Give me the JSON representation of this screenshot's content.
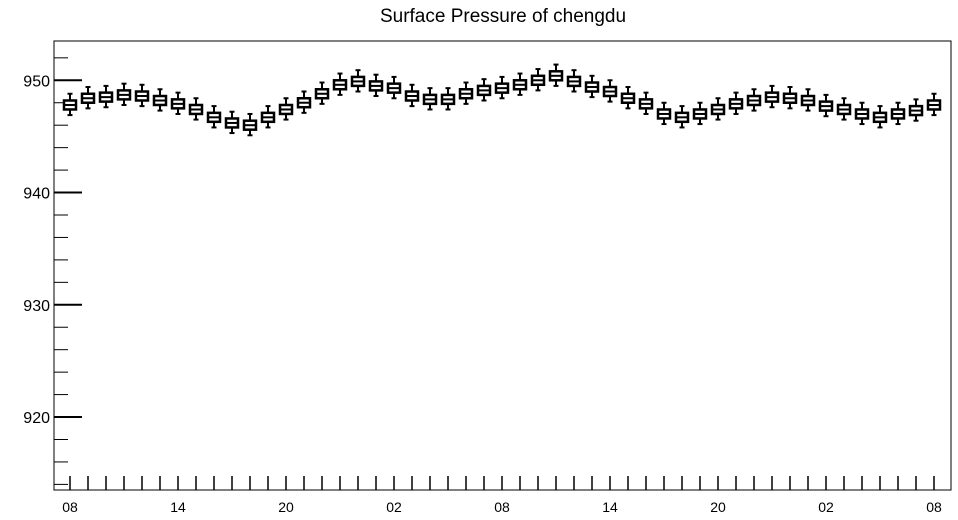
{
  "chart_data": {
    "type": "box",
    "title": "Surface Pressure of chengdu",
    "xlabel": "",
    "ylabel": "",
    "ylim": [
      913.5,
      953.5
    ],
    "y_major_ticks": [
      920,
      930,
      940,
      950
    ],
    "y_minor_step": 2,
    "x_tick_labels": [
      {
        "index": 0,
        "label": "08"
      },
      {
        "index": 6,
        "label": "14"
      },
      {
        "index": 12,
        "label": "20"
      },
      {
        "index": 18,
        "label": "02"
      },
      {
        "index": 24,
        "label": "08"
      },
      {
        "index": 30,
        "label": "14"
      },
      {
        "index": 36,
        "label": "20"
      },
      {
        "index": 42,
        "label": "02"
      },
      {
        "index": 48,
        "label": "08"
      }
    ],
    "grid": false,
    "legend": "none",
    "series": [
      {
        "color": "#000000",
        "median": [
          947.8,
          948.4,
          948.5,
          948.7,
          948.6,
          948.2,
          947.9,
          947.4,
          946.7,
          946.2,
          946.0,
          946.7,
          947.4,
          948.0,
          948.8,
          949.6,
          949.9,
          949.5,
          949.3,
          948.6,
          948.3,
          948.3,
          948.8,
          949.1,
          949.3,
          949.6,
          950.0,
          950.4,
          949.9,
          949.4,
          949.0,
          948.4,
          947.9,
          947.0,
          946.7,
          947.0,
          947.4,
          947.9,
          948.2,
          948.5,
          948.4,
          948.2,
          947.7,
          947.4,
          947.0,
          946.7,
          947.0,
          947.3,
          947.8
        ]
      }
    ]
  }
}
